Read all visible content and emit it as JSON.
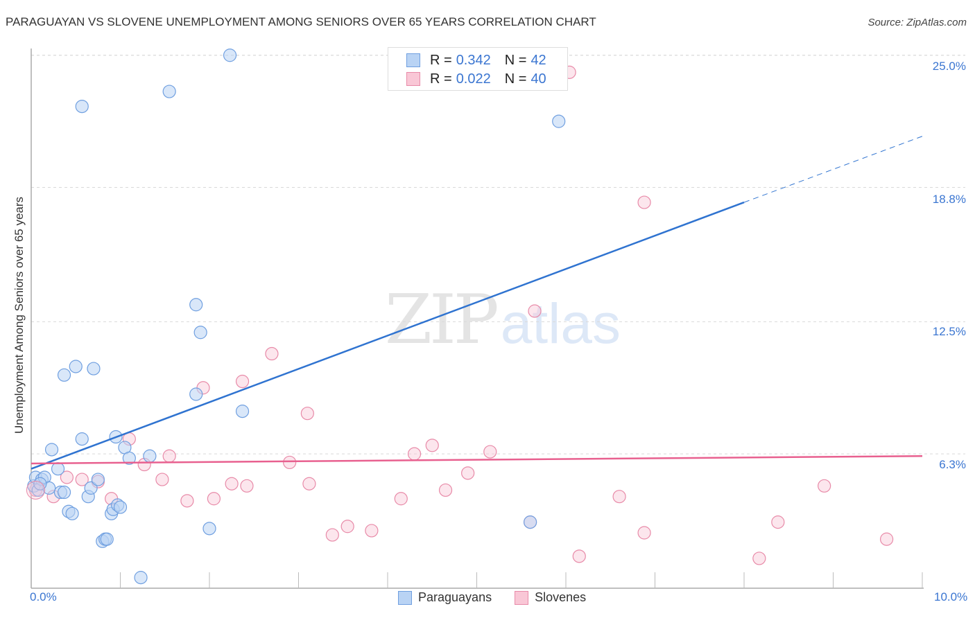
{
  "header": {
    "title": "PARAGUAYAN VS SLOVENE UNEMPLOYMENT AMONG SENIORS OVER 65 YEARS CORRELATION CHART",
    "source": "Source: ZipAtlas.com"
  },
  "watermark": {
    "zip": "ZIP",
    "atlas": "atlas"
  },
  "legend": {
    "series": [
      {
        "name": "Paraguayans",
        "r_label": "R =",
        "r_value": "0.342",
        "n_label": "N =",
        "n_value": "42",
        "fill": "#b9d3f4",
        "stroke": "#6f9fe0"
      },
      {
        "name": "Slovenes",
        "r_label": "R =",
        "r_value": "0.022",
        "n_label": "N =",
        "n_value": "40",
        "fill": "#f9c7d6",
        "stroke": "#e88aa8"
      }
    ]
  },
  "axes": {
    "y_label": "Unemployment Among Seniors over 65 years",
    "y_ticks": [
      "25.0%",
      "18.8%",
      "12.5%",
      "6.3%"
    ],
    "x_ticks": [
      "0.0%",
      "10.0%"
    ]
  },
  "colors": {
    "blue_line": "#2f73d0",
    "pink_line": "#e8608f",
    "tick_label": "#3b76d1",
    "grid": "#d9d9d9"
  },
  "chart_data": {
    "type": "scatter",
    "title": "PARAGUAYAN VS SLOVENE UNEMPLOYMENT AMONG SENIORS OVER 65 YEARS CORRELATION CHART",
    "xlabel": "",
    "ylabel": "Unemployment Among Seniors over 65 years",
    "xlim": [
      0,
      10
    ],
    "ylim": [
      0,
      25.5
    ],
    "x_tick_labels": [
      "0.0%",
      "10.0%"
    ],
    "y_tick_labels": [
      "6.3%",
      "12.5%",
      "18.8%",
      "25.0%"
    ],
    "y_tick_values": [
      6.3,
      12.5,
      18.8,
      25.0
    ],
    "grid": true,
    "legend_position": "top-center",
    "series": [
      {
        "name": "Paraguayans",
        "R": 0.342,
        "N": 42,
        "trend": {
          "x0": 0.0,
          "y0": 5.6,
          "x1": 8.0,
          "y1": 18.1,
          "dashed_extension_to": {
            "x": 10.0,
            "y": 21.2
          }
        },
        "points": [
          [
            0.03,
            4.8
          ],
          [
            0.05,
            5.2
          ],
          [
            0.08,
            4.6
          ],
          [
            0.12,
            5.1
          ],
          [
            0.15,
            5.2
          ],
          [
            0.2,
            4.7
          ],
          [
            0.23,
            6.5
          ],
          [
            0.3,
            5.6
          ],
          [
            0.33,
            4.5
          ],
          [
            0.37,
            4.5
          ],
          [
            0.37,
            10.0
          ],
          [
            0.42,
            3.6
          ],
          [
            0.46,
            3.5
          ],
          [
            0.5,
            10.4
          ],
          [
            0.57,
            22.6
          ],
          [
            0.57,
            7.0
          ],
          [
            0.64,
            4.3
          ],
          [
            0.67,
            4.7
          ],
          [
            0.7,
            10.3
          ],
          [
            0.75,
            5.1
          ],
          [
            0.8,
            2.2
          ],
          [
            0.83,
            2.3
          ],
          [
            0.85,
            2.3
          ],
          [
            0.9,
            3.5
          ],
          [
            0.92,
            3.7
          ],
          [
            0.95,
            7.1
          ],
          [
            0.97,
            3.9
          ],
          [
            1.0,
            3.8
          ],
          [
            1.05,
            6.6
          ],
          [
            1.1,
            6.1
          ],
          [
            1.23,
            0.5
          ],
          [
            1.33,
            6.2
          ],
          [
            1.55,
            23.3
          ],
          [
            1.85,
            9.1
          ],
          [
            1.85,
            13.3
          ],
          [
            1.9,
            12.0
          ],
          [
            2.0,
            2.8
          ],
          [
            2.23,
            25.0
          ],
          [
            2.37,
            8.3
          ],
          [
            5.6,
            3.1
          ],
          [
            5.92,
            21.9
          ],
          [
            0.1,
            4.9
          ]
        ]
      },
      {
        "name": "Slovenes",
        "R": 0.022,
        "N": 40,
        "trend": {
          "x0": 0.0,
          "y0": 5.85,
          "x1": 10.0,
          "y1": 6.2
        },
        "points": [
          [
            0.05,
            4.6
          ],
          [
            0.25,
            4.3
          ],
          [
            0.4,
            5.2
          ],
          [
            0.57,
            5.1
          ],
          [
            0.75,
            5.0
          ],
          [
            0.9,
            4.2
          ],
          [
            1.1,
            7.0
          ],
          [
            1.27,
            5.8
          ],
          [
            1.47,
            5.1
          ],
          [
            1.55,
            6.2
          ],
          [
            1.75,
            4.1
          ],
          [
            1.93,
            9.4
          ],
          [
            2.05,
            4.2
          ],
          [
            2.25,
            4.9
          ],
          [
            2.42,
            4.8
          ],
          [
            2.37,
            9.7
          ],
          [
            2.7,
            11.0
          ],
          [
            2.9,
            5.9
          ],
          [
            3.1,
            8.2
          ],
          [
            3.12,
            4.9
          ],
          [
            3.38,
            2.5
          ],
          [
            3.55,
            2.9
          ],
          [
            3.82,
            2.7
          ],
          [
            4.15,
            4.2
          ],
          [
            4.3,
            6.3
          ],
          [
            4.5,
            6.7
          ],
          [
            4.65,
            4.6
          ],
          [
            4.9,
            5.4
          ],
          [
            5.15,
            6.4
          ],
          [
            5.65,
            13.0
          ],
          [
            5.6,
            3.1
          ],
          [
            6.15,
            1.5
          ],
          [
            6.6,
            4.3
          ],
          [
            6.88,
            18.1
          ],
          [
            6.88,
            2.6
          ],
          [
            6.04,
            24.2
          ],
          [
            8.17,
            1.4
          ],
          [
            8.38,
            3.1
          ],
          [
            8.9,
            4.8
          ],
          [
            9.6,
            2.3
          ]
        ]
      }
    ]
  }
}
